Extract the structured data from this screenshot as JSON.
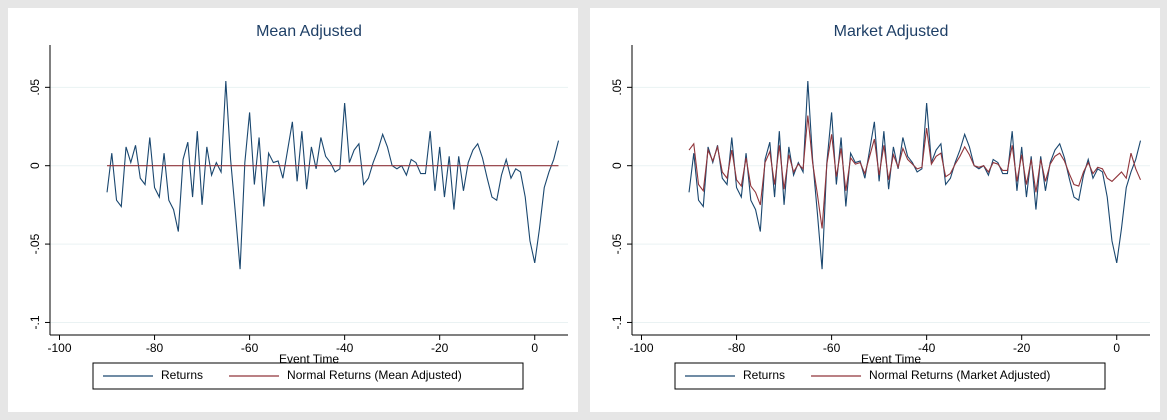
{
  "chart_data": [
    {
      "type": "line",
      "title": "Mean Adjusted",
      "xlabel": "Event Time",
      "x": [
        -90,
        -89,
        -88,
        -87,
        -86,
        -85,
        -84,
        -83,
        -82,
        -81,
        -80,
        -79,
        -78,
        -77,
        -76,
        -75,
        -74,
        -73,
        -72,
        -71,
        -70,
        -69,
        -68,
        -67,
        -66,
        -65,
        -64,
        -63,
        -62,
        -61,
        -60,
        -59,
        -58,
        -57,
        -56,
        -55,
        -54,
        -53,
        -52,
        -51,
        -50,
        -49,
        -48,
        -47,
        -46,
        -45,
        -44,
        -43,
        -42,
        -41,
        -40,
        -39,
        -38,
        -37,
        -36,
        -35,
        -34,
        -33,
        -32,
        -31,
        -30,
        -29,
        -28,
        -27,
        -26,
        -25,
        -24,
        -23,
        -22,
        -21,
        -20,
        -19,
        -18,
        -17,
        -16,
        -15,
        -14,
        -13,
        -12,
        -11,
        -10,
        -9,
        -8,
        -7,
        -6,
        -5,
        -4,
        -3,
        -2,
        -1,
        0,
        1,
        2,
        3,
        4,
        5
      ],
      "series": [
        {
          "name": "Returns",
          "color": "#1a476f",
          "values": [
            -0.017,
            0.008,
            -0.022,
            -0.026,
            0.012,
            0.002,
            0.013,
            -0.008,
            -0.012,
            0.018,
            -0.014,
            -0.02,
            0.008,
            -0.022,
            -0.028,
            -0.042,
            0.004,
            0.015,
            -0.02,
            0.022,
            -0.025,
            0.012,
            -0.006,
            0.002,
            -0.004,
            0.054,
            0.004,
            -0.03,
            -0.066,
            0.002,
            0.034,
            -0.012,
            0.018,
            -0.026,
            0.008,
            0.002,
            0.003,
            -0.008,
            0.01,
            0.028,
            -0.01,
            0.022,
            -0.015,
            0.012,
            -0.002,
            0.018,
            0.006,
            0.002,
            -0.004,
            -0.002,
            0.04,
            0.002,
            0.01,
            0.014,
            -0.012,
            -0.008,
            0.002,
            0.01,
            0.02,
            0.012,
            0,
            -0.002,
            0,
            -0.006,
            0.004,
            0.002,
            -0.005,
            -0.005,
            0.022,
            -0.016,
            0.012,
            -0.02,
            0.006,
            -0.028,
            0.006,
            -0.016,
            0.002,
            0.01,
            0.014,
            0.005,
            -0.008,
            -0.02,
            -0.022,
            -0.006,
            0.004,
            -0.008,
            -0.002,
            -0.004,
            -0.02,
            -0.048,
            -0.062,
            -0.04,
            -0.014,
            -0.004,
            0.004,
            0.016
          ]
        },
        {
          "name": "Normal Returns (Mean Adjusted)",
          "color": "#90353b",
          "values": [
            0,
            0,
            0,
            0,
            0,
            0,
            0,
            0,
            0,
            0,
            0,
            0,
            0,
            0,
            0,
            0,
            0,
            0,
            0,
            0,
            0,
            0,
            0,
            0,
            0,
            0,
            0,
            0,
            0,
            0,
            0,
            0,
            0,
            0,
            0,
            0,
            0,
            0,
            0,
            0,
            0,
            0,
            0,
            0,
            0,
            0,
            0,
            0,
            0,
            0,
            0,
            0,
            0,
            0,
            0,
            0,
            0,
            0,
            0,
            0,
            0,
            0,
            0,
            0,
            0,
            0,
            0,
            0,
            0,
            0,
            0,
            0,
            0,
            0,
            0,
            0,
            0,
            0,
            0,
            0,
            0,
            0,
            0,
            0,
            0,
            0,
            0,
            0,
            0,
            0,
            0,
            0,
            0,
            0,
            0,
            0
          ]
        }
      ],
      "xlim": [
        -102,
        7
      ],
      "xticks": [
        -100,
        -80,
        -60,
        -40,
        -20,
        0
      ],
      "ylim": [
        -0.108,
        0.077
      ],
      "yticks": [
        {
          "value": -0.1,
          "label": "-.1"
        },
        {
          "value": -0.05,
          "label": "-.05"
        },
        0,
        {
          "value": 0.05,
          "label": ".05"
        }
      ],
      "grid": true,
      "legend": "bottom"
    },
    {
      "type": "line",
      "title": "Market Adjusted",
      "xlabel": "Event Time",
      "x": [
        -90,
        -89,
        -88,
        -87,
        -86,
        -85,
        -84,
        -83,
        -82,
        -81,
        -80,
        -79,
        -78,
        -77,
        -76,
        -75,
        -74,
        -73,
        -72,
        -71,
        -70,
        -69,
        -68,
        -67,
        -66,
        -65,
        -64,
        -63,
        -62,
        -61,
        -60,
        -59,
        -58,
        -57,
        -56,
        -55,
        -54,
        -53,
        -52,
        -51,
        -50,
        -49,
        -48,
        -47,
        -46,
        -45,
        -44,
        -43,
        -42,
        -41,
        -40,
        -39,
        -38,
        -37,
        -36,
        -35,
        -34,
        -33,
        -32,
        -31,
        -30,
        -29,
        -28,
        -27,
        -26,
        -25,
        -24,
        -23,
        -22,
        -21,
        -20,
        -19,
        -18,
        -17,
        -16,
        -15,
        -14,
        -13,
        -12,
        -11,
        -10,
        -9,
        -8,
        -7,
        -6,
        -5,
        -4,
        -3,
        -2,
        -1,
        0,
        1,
        2,
        3,
        4,
        5
      ],
      "series": [
        {
          "name": "Returns",
          "color": "#1a476f",
          "values": [
            -0.017,
            0.008,
            -0.022,
            -0.026,
            0.012,
            0.002,
            0.013,
            -0.008,
            -0.012,
            0.018,
            -0.014,
            -0.02,
            0.008,
            -0.022,
            -0.028,
            -0.042,
            0.004,
            0.015,
            -0.02,
            0.022,
            -0.025,
            0.012,
            -0.006,
            0.002,
            -0.004,
            0.054,
            0.004,
            -0.03,
            -0.066,
            0.002,
            0.034,
            -0.012,
            0.018,
            -0.026,
            0.008,
            0.002,
            0.003,
            -0.008,
            0.01,
            0.028,
            -0.01,
            0.022,
            -0.015,
            0.012,
            -0.002,
            0.018,
            0.006,
            0.002,
            -0.004,
            -0.002,
            0.04,
            0.002,
            0.01,
            0.014,
            -0.012,
            -0.008,
            0.002,
            0.01,
            0.02,
            0.012,
            0,
            -0.002,
            0,
            -0.006,
            0.004,
            0.002,
            -0.005,
            -0.005,
            0.022,
            -0.016,
            0.012,
            -0.02,
            0.006,
            -0.028,
            0.006,
            -0.016,
            0.002,
            0.01,
            0.014,
            0.005,
            -0.008,
            -0.02,
            -0.022,
            -0.006,
            0.004,
            -0.008,
            -0.002,
            -0.004,
            -0.02,
            -0.048,
            -0.062,
            -0.04,
            -0.014,
            -0.004,
            0.004,
            0.016
          ]
        },
        {
          "name": "Normal Returns (Market Adjusted)",
          "color": "#90353b",
          "values": [
            0.01,
            0.014,
            -0.012,
            -0.016,
            0.01,
            0.003,
            0.012,
            -0.004,
            -0.008,
            0.01,
            -0.009,
            -0.013,
            0.005,
            -0.013,
            -0.017,
            -0.025,
            0.002,
            0.009,
            -0.012,
            0.013,
            -0.015,
            0.007,
            -0.004,
            0.001,
            -0.002,
            0.032,
            0.002,
            -0.018,
            -0.04,
            0.001,
            0.02,
            -0.007,
            0.011,
            -0.016,
            0.005,
            0.001,
            0.002,
            -0.005,
            0.006,
            0.017,
            -0.006,
            0.013,
            -0.009,
            0.007,
            -0.001,
            0.011,
            0.004,
            0.001,
            -0.002,
            -0.001,
            0.024,
            0.001,
            0.006,
            0.008,
            -0.007,
            -0.005,
            0.001,
            0.006,
            0.012,
            0.007,
            0,
            -0.001,
            0,
            -0.004,
            0.002,
            0.001,
            -0.003,
            -0.003,
            0.013,
            -0.01,
            0.007,
            -0.012,
            0.004,
            -0.017,
            0.004,
            -0.01,
            0.001,
            0.006,
            0.008,
            0.003,
            -0.005,
            -0.012,
            -0.013,
            -0.004,
            0.002,
            -0.005,
            -0.001,
            -0.002,
            -0.008,
            -0.01,
            -0.007,
            -0.004,
            -0.008,
            0.008,
            -0.002,
            -0.009
          ]
        }
      ],
      "xlim": [
        -102,
        7
      ],
      "xticks": [
        -100,
        -80,
        -60,
        -40,
        -20,
        0
      ],
      "ylim": [
        -0.108,
        0.077
      ],
      "yticks": [
        {
          "value": -0.1,
          "label": "-.1"
        },
        {
          "value": -0.05,
          "label": "-.05"
        },
        0,
        {
          "value": 0.05,
          "label": ".05"
        }
      ],
      "grid": true,
      "legend": "bottom"
    }
  ]
}
